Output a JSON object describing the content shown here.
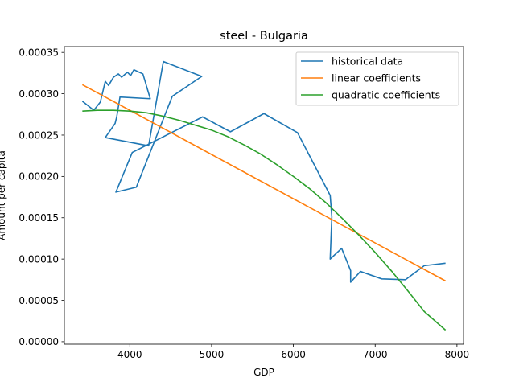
{
  "chart_data": {
    "type": "line",
    "title": "steel - Bulgaria",
    "xlabel": "GDP",
    "ylabel": "Amount per capita",
    "xlim": [
      3200,
      8080
    ],
    "ylim": [
      -3e-06,
      0.000357
    ],
    "xticks": [
      4000,
      5000,
      6000,
      7000,
      8000
    ],
    "xtick_labels": [
      "4000",
      "5000",
      "6000",
      "7000",
      "8000"
    ],
    "yticks": [
      0.0,
      5e-05,
      0.0001,
      0.00015,
      0.0002,
      0.00025,
      0.0003,
      0.00035
    ],
    "ytick_labels": [
      "0.00000",
      "0.00005",
      "0.00010",
      "0.00015",
      "0.00020",
      "0.00025",
      "0.00030",
      "0.00035"
    ],
    "grid": false,
    "legend_position": "top-right",
    "series": [
      {
        "name": "historical data",
        "color": "#1f77b4",
        "x": [
          3420,
          3560,
          3640,
          3700,
          3740,
          3800,
          3860,
          3900,
          3970,
          4010,
          4050,
          4160,
          4250,
          3880,
          3840,
          3820,
          3700,
          4230,
          4410,
          4800,
          4880,
          4520,
          4080,
          3830,
          4030,
          4890,
          5230,
          5640,
          6050,
          6450,
          6470,
          6450,
          6590,
          6680,
          6700,
          6700,
          6820,
          7080,
          7370,
          7600,
          7860
        ],
        "y": [
          0.000291,
          0.00028,
          0.00029,
          0.000315,
          0.00031,
          0.00032,
          0.000324,
          0.00032,
          0.000326,
          0.000322,
          0.000329,
          0.000324,
          0.000294,
          0.000296,
          0.000272,
          0.000264,
          0.000247,
          0.000237,
          0.000339,
          0.000324,
          0.000321,
          0.000297,
          0.000187,
          0.000181,
          0.000229,
          0.000272,
          0.000254,
          0.000276,
          0.000253,
          0.000177,
          0.000151,
          0.0001,
          0.000113,
          9.1e-05,
          8.6e-05,
          7.2e-05,
          8.5e-05,
          7.6e-05,
          7.5e-05,
          9.2e-05,
          9.5e-05
        ]
      },
      {
        "name": "linear coefficients",
        "color": "#ff7f0e",
        "x": [
          3420,
          7860
        ],
        "y": [
          0.000311,
          7.35e-05
        ]
      },
      {
        "name": "quadratic coefficients",
        "color": "#2ca02c",
        "x": [
          3420,
          3600,
          3800,
          4000,
          4200,
          4400,
          4600,
          4800,
          5000,
          5200,
          5400,
          5600,
          5800,
          6000,
          6200,
          6400,
          6600,
          6800,
          7000,
          7200,
          7400,
          7600,
          7860
        ],
        "y": [
          0.000279,
          0.00028,
          0.00028,
          0.000279,
          0.000277,
          0.000273,
          0.000268,
          0.000262,
          0.000256,
          0.000248,
          0.000238,
          0.000227,
          0.000214,
          0.0002,
          0.000185,
          0.000168,
          0.000149,
          0.000129,
          0.000108,
          8.55e-05,
          6.15e-05,
          3.65e-05,
          1.4e-05
        ]
      }
    ]
  }
}
